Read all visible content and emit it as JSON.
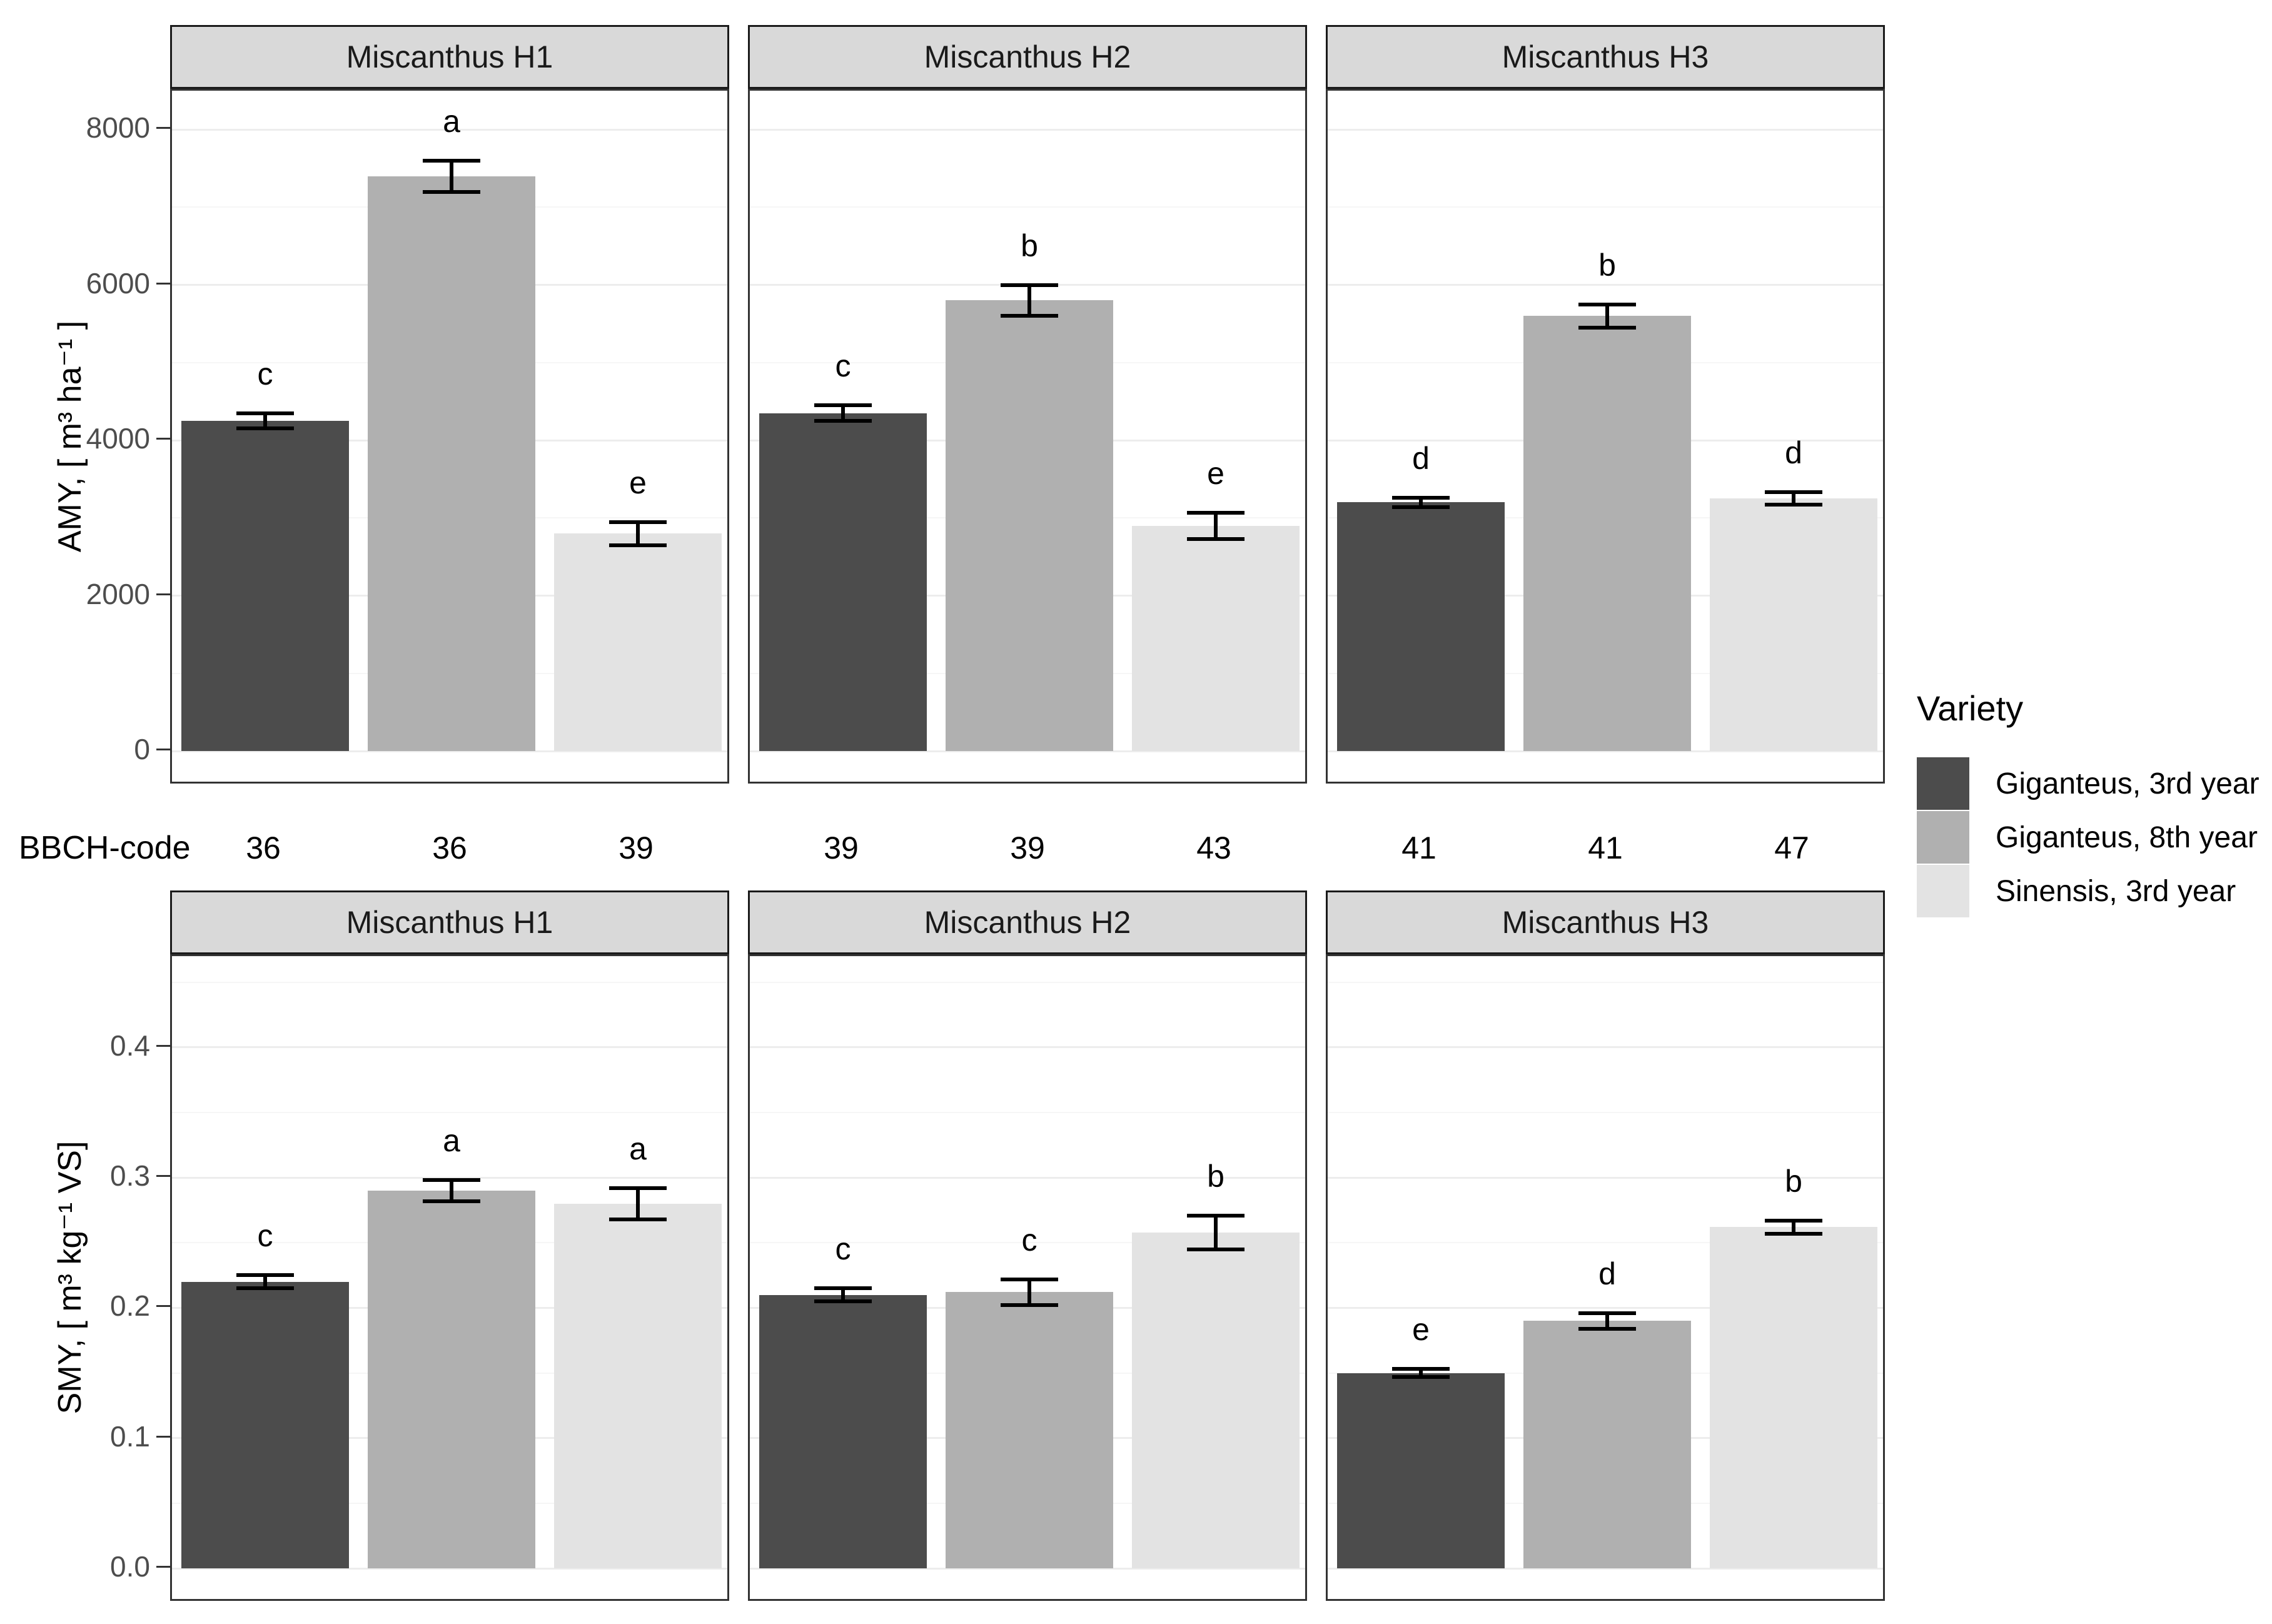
{
  "legend": {
    "title": "Variety",
    "items": [
      {
        "label": "Giganteus, 3rd year",
        "color": "#4c4c4c"
      },
      {
        "label": "Giganteus, 8th year",
        "color": "#b0b0b0"
      },
      {
        "label": "Sinensis, 3rd year",
        "color": "#e3e3e3"
      }
    ]
  },
  "bbch": {
    "label": "BBCH-code",
    "codes": [
      [
        "36",
        "36",
        "39"
      ],
      [
        "39",
        "39",
        "43"
      ],
      [
        "41",
        "41",
        "47"
      ]
    ]
  },
  "colors": {
    "bar_dark": "#4c4c4c",
    "bar_mid": "#b0b0b0",
    "bar_light": "#e3e3e3",
    "strip_bg": "#d9d9d9",
    "panel_border": "#333333",
    "grid_major": "#ededed",
    "grid_minor": "#f6f6f6",
    "tick_text": "#4d4d4d",
    "error_bar": "#000000"
  },
  "chart_data": [
    {
      "type": "bar",
      "ylabel": "AMY, [ m³ ha⁻¹ ]",
      "series": [
        "Giganteus, 3rd year",
        "Giganteus, 8th year",
        "Sinensis, 3rd year"
      ],
      "ylim": [
        0,
        8500
      ],
      "grid": true,
      "legend_position": "right",
      "yticks": [
        {
          "v": 0,
          "label": "0"
        },
        {
          "v": 2000,
          "label": "2000"
        },
        {
          "v": 4000,
          "label": "4000"
        },
        {
          "v": 6000,
          "label": "6000"
        },
        {
          "v": 8000,
          "label": "8000"
        }
      ],
      "minor_ticks": [
        1000,
        3000,
        5000,
        7000
      ],
      "facets": [
        {
          "title": "Miscanthus H1",
          "values": [
            4250,
            7400,
            2800
          ],
          "errors": [
            100,
            200,
            150
          ],
          "letters": [
            "c",
            "a",
            "e"
          ],
          "bbch": [
            "36",
            "36",
            "39"
          ]
        },
        {
          "title": "Miscanthus H2",
          "values": [
            4350,
            5800,
            2900
          ],
          "errors": [
            100,
            200,
            170
          ],
          "letters": [
            "c",
            "b",
            "e"
          ],
          "bbch": [
            "39",
            "39",
            "43"
          ]
        },
        {
          "title": "Miscanthus H3",
          "values": [
            3200,
            5600,
            3250
          ],
          "errors": [
            60,
            150,
            80
          ],
          "letters": [
            "d",
            "b",
            "d"
          ],
          "bbch": [
            "41",
            "41",
            "47"
          ]
        }
      ]
    },
    {
      "type": "bar",
      "ylabel": "SMY, [ m³ kg⁻¹ VS]",
      "series": [
        "Giganteus, 3rd year",
        "Giganteus, 8th year",
        "Sinensis, 3rd year"
      ],
      "ylim": [
        0,
        0.47
      ],
      "grid": true,
      "legend_position": "right",
      "yticks": [
        {
          "v": 0,
          "label": "0.0"
        },
        {
          "v": 0.1,
          "label": "0.1"
        },
        {
          "v": 0.2,
          "label": "0.2"
        },
        {
          "v": 0.3,
          "label": "0.3"
        },
        {
          "v": 0.4,
          "label": "0.4"
        }
      ],
      "minor_ticks": [
        0.05,
        0.15,
        0.25,
        0.35,
        0.45
      ],
      "facets": [
        {
          "title": "Miscanthus H1",
          "values": [
            0.22,
            0.29,
            0.28
          ],
          "errors": [
            0.005,
            0.008,
            0.012
          ],
          "letters": [
            "c",
            "a",
            "a"
          ]
        },
        {
          "title": "Miscanthus H2",
          "values": [
            0.21,
            0.212,
            0.258
          ],
          "errors": [
            0.005,
            0.01,
            0.013
          ],
          "letters": [
            "c",
            "c",
            "b"
          ]
        },
        {
          "title": "Miscanthus H3",
          "values": [
            0.15,
            0.19,
            0.262
          ],
          "errors": [
            0.003,
            0.006,
            0.005
          ],
          "letters": [
            "e",
            "d",
            "b"
          ]
        }
      ]
    }
  ]
}
